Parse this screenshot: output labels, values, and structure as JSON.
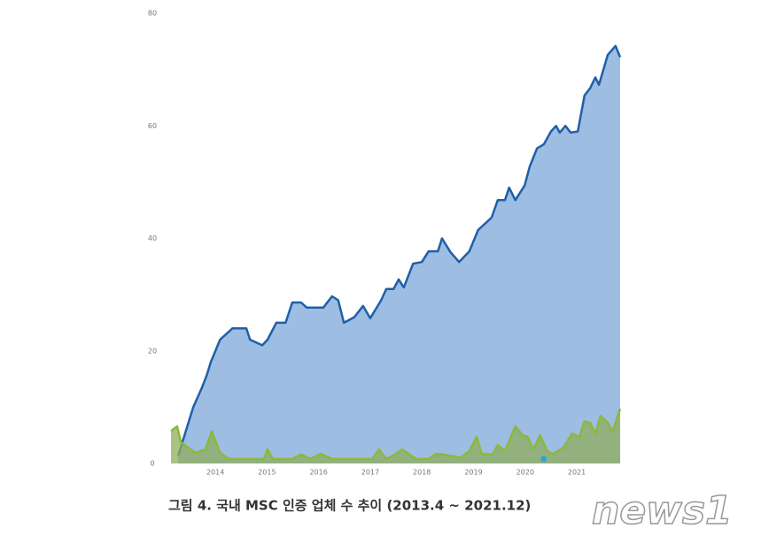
{
  "chart_data": {
    "type": "area",
    "caption": "그림 4. 국내 MSC 인증 업체 수 추이 (2013.4 ~ 2021.12)",
    "watermark": "news1",
    "xlim": [
      2013.14,
      2021.84
    ],
    "xticks": [
      2014,
      2015,
      2016,
      2017,
      2018,
      2019,
      2020,
      2021
    ],
    "ylim": [
      0,
      80
    ],
    "yticks": [
      0,
      20,
      40,
      60,
      80
    ],
    "grid": false,
    "series": [
      {
        "type": "area",
        "color": "#1f5fa8",
        "fill": "#9dbde3",
        "x": [
          2013.28,
          2013.57,
          2013.74,
          2013.83,
          2013.91,
          2014.09,
          2014.33,
          2014.6,
          2014.67,
          2014.91,
          2015.01,
          2015.18,
          2015.36,
          2015.49,
          2015.66,
          2015.77,
          2016.09,
          2016.26,
          2016.38,
          2016.49,
          2016.69,
          2016.86,
          2017.0,
          2017.21,
          2017.31,
          2017.45,
          2017.55,
          2017.65,
          2017.83,
          2018.0,
          2018.13,
          2018.31,
          2018.39,
          2018.55,
          2018.72,
          2018.92,
          2019.09,
          2019.35,
          2019.47,
          2019.61,
          2019.69,
          2019.81,
          2019.99,
          2020.09,
          2020.23,
          2020.36,
          2020.5,
          2020.6,
          2020.67,
          2020.78,
          2020.88,
          2021.02,
          2021.15,
          2021.26,
          2021.36,
          2021.43,
          2021.6,
          2021.75,
          2021.84
        ],
        "values": [
          1.4,
          10,
          13.5,
          15.6,
          18,
          22,
          24,
          24,
          22,
          21,
          22,
          25,
          25,
          28.6,
          28.6,
          27.7,
          27.7,
          29.7,
          29,
          25,
          26,
          28,
          25.8,
          29,
          31,
          31,
          32.7,
          31.3,
          35.5,
          35.8,
          37.7,
          37.7,
          40,
          37.6,
          35.8,
          37.7,
          41.5,
          43.7,
          46.8,
          46.8,
          49,
          46.8,
          49.4,
          52.8,
          56,
          56.7,
          59,
          60,
          58.8,
          60,
          58.8,
          59,
          65.4,
          66.7,
          68.6,
          67.3,
          72.6,
          74.2,
          72.2
        ]
      },
      {
        "type": "area",
        "color": "#8cb83c",
        "fill": "#8fae5c",
        "x": [
          2013.14,
          2013.26,
          2013.33,
          2013.61,
          2013.81,
          2013.93,
          2014.09,
          2014.26,
          2014.94,
          2015.01,
          2015.11,
          2015.49,
          2015.66,
          2015.84,
          2016.04,
          2016.26,
          2017.04,
          2017.17,
          2017.31,
          2017.48,
          2017.62,
          2017.76,
          2017.89,
          2018.13,
          2018.27,
          2018.41,
          2018.75,
          2018.92,
          2019.06,
          2019.16,
          2019.37,
          2019.47,
          2019.61,
          2019.81,
          2019.95,
          2020.05,
          2020.16,
          2020.29,
          2020.43,
          2020.54,
          2020.74,
          2020.91,
          2021.05,
          2021.15,
          2021.26,
          2021.36,
          2021.46,
          2021.6,
          2021.7,
          2021.84
        ],
        "values": [
          5.8,
          6.6,
          3.8,
          1.9,
          2.5,
          5.7,
          1.9,
          0.8,
          0.8,
          2.5,
          0.8,
          0.8,
          1.6,
          0.8,
          1.7,
          0.8,
          0.8,
          2.5,
          0.8,
          1.6,
          2.5,
          1.6,
          0.8,
          0.8,
          1.7,
          1.6,
          1,
          2.2,
          4.7,
          1.7,
          1.6,
          3.3,
          2.2,
          6.6,
          5,
          4.7,
          2.5,
          5,
          2.2,
          1.7,
          2.8,
          5.3,
          4.7,
          7.5,
          7.2,
          5.3,
          8.5,
          7.2,
          5.7,
          9.7
        ]
      },
      {
        "type": "scatter",
        "color": "#29a8d8",
        "x": [
          2020.36
        ],
        "values": [
          0.8
        ]
      }
    ]
  }
}
